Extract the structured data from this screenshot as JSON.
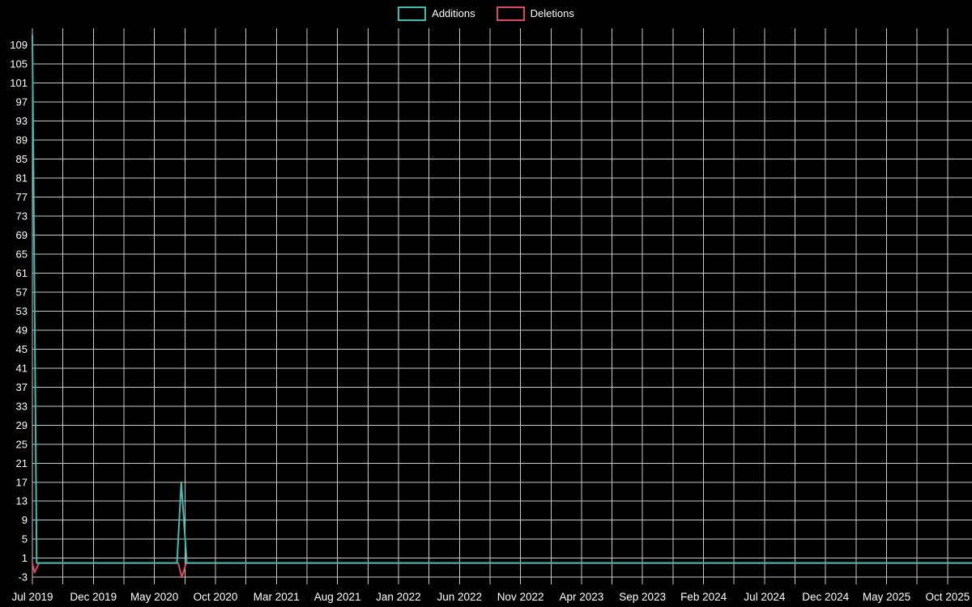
{
  "legend": {
    "items": [
      {
        "label": "Additions",
        "color": "#3fbdb2"
      },
      {
        "label": "Deletions",
        "color": "#dd4860"
      }
    ]
  },
  "chart_data": {
    "type": "line",
    "title": "",
    "background": "#000000",
    "grid": {
      "color": "#c9c9c9",
      "vertical_step_months": 2.5
    },
    "x_axis": {
      "labels": [
        "Jul 2019",
        "Dec 2019",
        "May 2020",
        "Oct 2020",
        "Mar 2021",
        "Aug 2021",
        "Jan 2022",
        "Jun 2022",
        "Nov 2022",
        "Apr 2023",
        "Sep 2023",
        "Feb 2024",
        "Jul 2024",
        "Dec 2024",
        "May 2025",
        "Oct 2025"
      ],
      "label_months": [
        0,
        5,
        10,
        15,
        20,
        25,
        30,
        35,
        40,
        45,
        50,
        55,
        60,
        65,
        70,
        75
      ],
      "total_months": 77
    },
    "y_axis": {
      "ticks": [
        109,
        105,
        101,
        97,
        93,
        89,
        85,
        81,
        77,
        73,
        69,
        65,
        61,
        57,
        53,
        49,
        45,
        41,
        37,
        33,
        29,
        25,
        21,
        17,
        13,
        9,
        5,
        1,
        -3
      ],
      "min": -4.5,
      "max": 112.5
    },
    "series": [
      {
        "name": "Deletions",
        "color": "#dd4860",
        "points": [
          [
            0,
            0
          ],
          [
            0.18,
            -2
          ],
          [
            0.55,
            0
          ],
          [
            11.95,
            0
          ],
          [
            12.25,
            -3
          ],
          [
            12.6,
            0
          ],
          [
            77,
            0
          ]
        ]
      },
      {
        "name": "Additions",
        "color": "#3fbdb2",
        "points": [
          [
            0,
            111
          ],
          [
            0.35,
            0
          ],
          [
            11.85,
            0
          ],
          [
            12.2,
            17
          ],
          [
            12.65,
            0
          ],
          [
            77,
            0
          ]
        ]
      }
    ]
  }
}
